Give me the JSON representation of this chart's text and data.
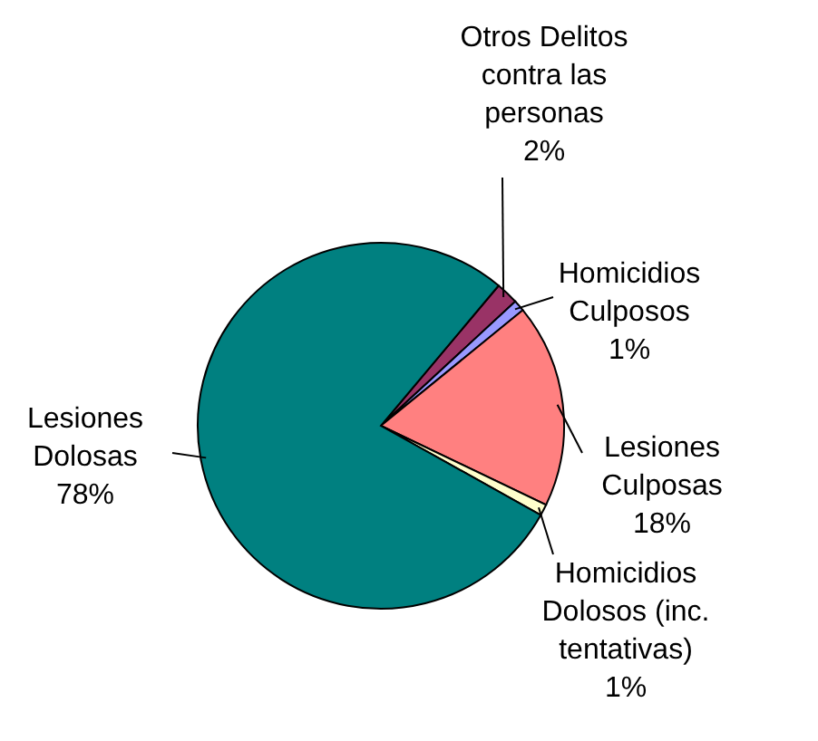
{
  "chart_data": {
    "type": "pie",
    "categories": [
      "Otros Delitos contra las personas",
      "Homicidios Culposos",
      "Lesiones Culposas",
      "Homicidios Dolosos (inc. tentativas)",
      "Lesiones Dolosas"
    ],
    "values": [
      2,
      1,
      18,
      1,
      78
    ],
    "value_labels": [
      "2%",
      "1%",
      "18%",
      "1%",
      "78%"
    ],
    "colors": [
      "#993366",
      "#9999ff",
      "#ff8080",
      "#ffffcc",
      "#008080"
    ],
    "legend": false
  }
}
